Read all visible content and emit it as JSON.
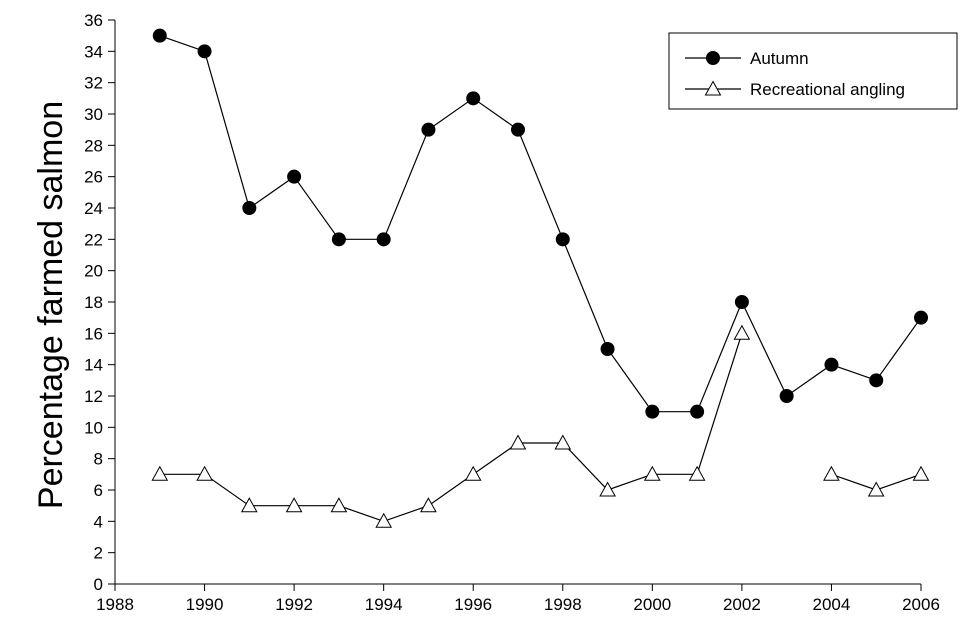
{
  "chart_data": {
    "type": "line",
    "title": "",
    "xlabel": "",
    "ylabel": "Percentage farmed salmon",
    "xlim": [
      1988,
      2006
    ],
    "ylim": [
      0,
      36
    ],
    "xticks": [
      1988,
      1990,
      1992,
      1994,
      1996,
      1998,
      2000,
      2002,
      2004,
      2006
    ],
    "yticks": [
      0,
      2,
      4,
      6,
      8,
      10,
      12,
      14,
      16,
      18,
      20,
      22,
      24,
      26,
      28,
      30,
      32,
      34,
      36
    ],
    "grid": false,
    "legend_position": "top-right",
    "series": [
      {
        "name": "Autumn",
        "marker": "filled-circle",
        "color": "#000000",
        "points": [
          [
            1989,
            35
          ],
          [
            1990,
            34
          ],
          [
            1991,
            24
          ],
          [
            1992,
            26
          ],
          [
            1993,
            22
          ],
          [
            1994,
            22
          ],
          [
            1995,
            29
          ],
          [
            1996,
            31
          ],
          [
            1997,
            29
          ],
          [
            1998,
            22
          ],
          [
            1999,
            15
          ],
          [
            2000,
            11
          ],
          [
            2001,
            11
          ],
          [
            2002,
            18
          ],
          [
            2003,
            12
          ],
          [
            2004,
            14
          ],
          [
            2005,
            13
          ],
          [
            2006,
            17
          ]
        ]
      },
      {
        "name": "Recreational angling",
        "marker": "open-triangle",
        "color": "#000000",
        "segments": [
          [
            [
              1989,
              7
            ],
            [
              1990,
              7
            ],
            [
              1991,
              5
            ],
            [
              1992,
              5
            ],
            [
              1993,
              5
            ],
            [
              1994,
              4
            ],
            [
              1995,
              5
            ],
            [
              1996,
              7
            ],
            [
              1997,
              9
            ],
            [
              1998,
              9
            ],
            [
              1999,
              6
            ],
            [
              2000,
              7
            ],
            [
              2001,
              7
            ],
            [
              2002,
              16
            ]
          ],
          [
            [
              2004,
              7
            ],
            [
              2005,
              6
            ],
            [
              2006,
              7
            ]
          ]
        ]
      }
    ]
  }
}
